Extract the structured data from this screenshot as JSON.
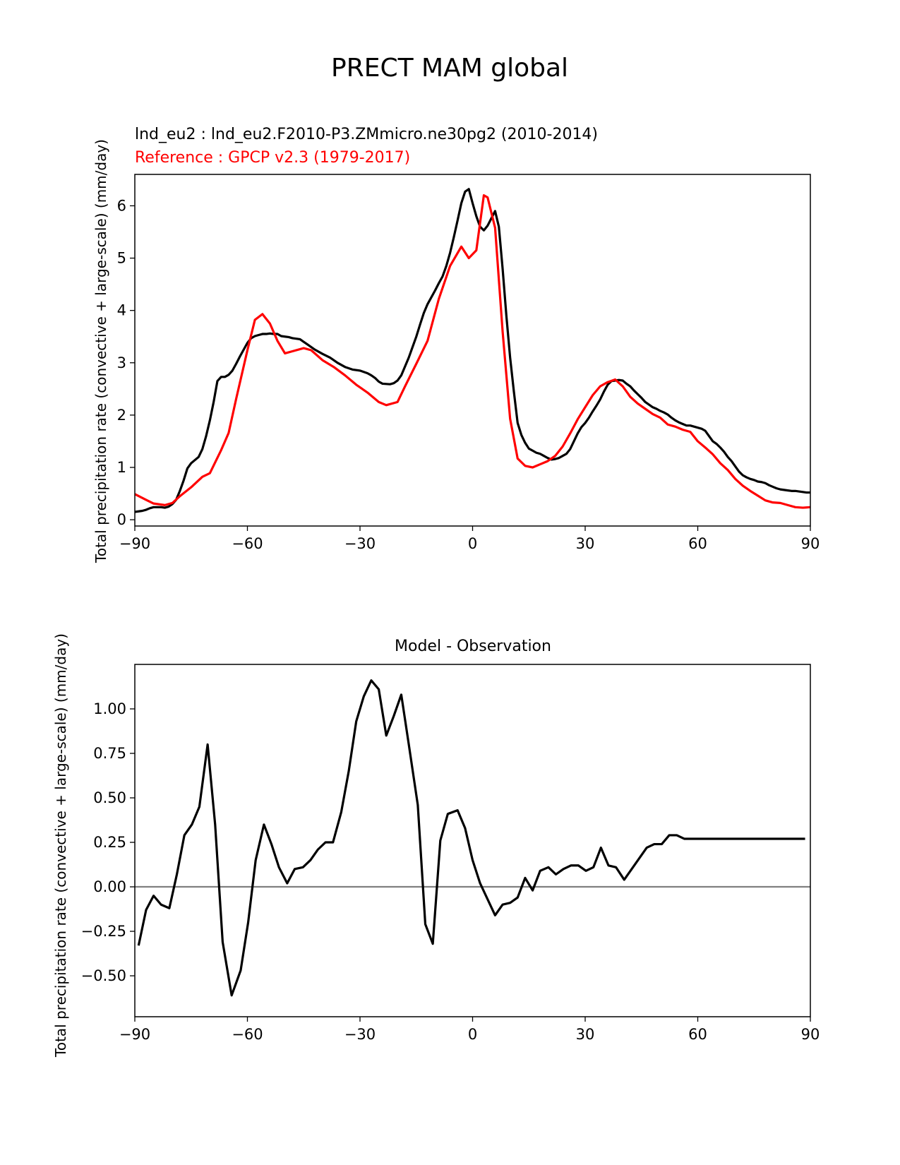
{
  "figure": {
    "suptitle": "PRECT MAM global"
  },
  "chart_data": [
    {
      "type": "line",
      "title_lines": [
        "lnd_eu2 : lnd_eu2.F2010-P3.ZMmicro.ne30pg2 (2010-2014)",
        "Reference : GPCP v2.3 (1979-2017)"
      ],
      "xlabel": "",
      "ylabel": "Total precipitation rate (convective + large-scale) (mm/day)",
      "xlim": [
        -90,
        90
      ],
      "ylim": [
        -0.12,
        6.6
      ],
      "xticks": [
        -90,
        -60,
        -30,
        0,
        30,
        60,
        90
      ],
      "xtick_labels": [
        "−90",
        "−60",
        "−30",
        "0",
        "30",
        "60",
        "90"
      ],
      "yticks": [
        0,
        1,
        2,
        3,
        4,
        5,
        6
      ],
      "ytick_labels": [
        "0",
        "1",
        "2",
        "3",
        "4",
        "5",
        "6"
      ],
      "series": [
        {
          "name": "lnd_eu2",
          "color": "#000000",
          "x": [
            -90,
            -88,
            -87,
            -86,
            -85,
            -83,
            -82,
            -81,
            -80,
            -79,
            -78,
            -77,
            -76,
            -75,
            -73,
            -72,
            -71,
            -70,
            -69,
            -68,
            -67,
            -66,
            -65,
            -64,
            -63,
            -62,
            -61,
            -60,
            -59,
            -58,
            -57,
            -56,
            -55,
            -54,
            -53,
            -52,
            -51,
            -50,
            -49,
            -48,
            -46,
            -45,
            -44,
            -42,
            -40,
            -38,
            -36,
            -34,
            -32,
            -30,
            -28,
            -27,
            -26,
            -25,
            -24,
            -22,
            -21,
            -20,
            -19,
            -18,
            -17,
            -16,
            -15,
            -14,
            -13,
            -12,
            -10,
            -9,
            -8,
            -7,
            -6,
            -5,
            -4,
            -3,
            -2,
            -1,
            0,
            1,
            2,
            3,
            4,
            5,
            6,
            7,
            8,
            9,
            10,
            11,
            12,
            13,
            14,
            15,
            16,
            17,
            18,
            19,
            20,
            21,
            22,
            23,
            24,
            25,
            26,
            27,
            28,
            29,
            30,
            31,
            32,
            33,
            34,
            35,
            36,
            37,
            38,
            39,
            40,
            41,
            42,
            43,
            44,
            45,
            46,
            47,
            48,
            49,
            50,
            51,
            52,
            53,
            54,
            55,
            56,
            57,
            58,
            59,
            60,
            61,
            62,
            63,
            64,
            65,
            66,
            67,
            68,
            69,
            70,
            71,
            72,
            73,
            74,
            75,
            76,
            77,
            78,
            79,
            80,
            81,
            82,
            83,
            84,
            85,
            86,
            87,
            88,
            89,
            90
          ],
          "values": [
            0.15,
            0.17,
            0.19,
            0.22,
            0.24,
            0.24,
            0.23,
            0.25,
            0.3,
            0.38,
            0.55,
            0.75,
            0.98,
            1.08,
            1.2,
            1.35,
            1.6,
            1.9,
            2.25,
            2.65,
            2.73,
            2.73,
            2.77,
            2.85,
            2.98,
            3.12,
            3.25,
            3.38,
            3.47,
            3.51,
            3.53,
            3.55,
            3.55,
            3.56,
            3.55,
            3.55,
            3.51,
            3.5,
            3.49,
            3.47,
            3.45,
            3.4,
            3.35,
            3.25,
            3.17,
            3.1,
            3.0,
            2.92,
            2.87,
            2.85,
            2.8,
            2.76,
            2.71,
            2.64,
            2.6,
            2.59,
            2.61,
            2.66,
            2.76,
            2.93,
            3.1,
            3.3,
            3.5,
            3.73,
            3.95,
            4.12,
            4.38,
            4.52,
            4.65,
            4.85,
            5.1,
            5.4,
            5.72,
            6.05,
            6.27,
            6.32,
            6.05,
            5.8,
            5.6,
            5.53,
            5.62,
            5.76,
            5.9,
            5.6,
            4.8,
            3.9,
            3.1,
            2.45,
            1.85,
            1.62,
            1.47,
            1.36,
            1.32,
            1.28,
            1.26,
            1.22,
            1.18,
            1.15,
            1.16,
            1.18,
            1.22,
            1.26,
            1.35,
            1.5,
            1.65,
            1.77,
            1.85,
            1.95,
            2.07,
            2.18,
            2.3,
            2.45,
            2.58,
            2.65,
            2.66,
            2.67,
            2.66,
            2.6,
            2.55,
            2.47,
            2.4,
            2.33,
            2.25,
            2.2,
            2.15,
            2.12,
            2.08,
            2.05,
            2.01,
            1.95,
            1.9,
            1.86,
            1.83,
            1.8,
            1.8,
            1.78,
            1.76,
            1.74,
            1.7,
            1.6,
            1.5,
            1.45,
            1.38,
            1.3,
            1.2,
            1.12,
            1.02,
            0.92,
            0.85,
            0.81,
            0.78,
            0.76,
            0.73,
            0.72,
            0.7,
            0.66,
            0.63,
            0.6,
            0.58,
            0.57,
            0.56,
            0.55,
            0.55,
            0.54,
            0.53,
            0.52,
            0.52
          ]
        },
        {
          "name": "GPCP v2.3",
          "color": "#ff0000",
          "x": [
            -90,
            -87,
            -85,
            -82,
            -80,
            -78,
            -75,
            -72,
            -70,
            -67,
            -65,
            -63,
            -60,
            -58,
            -56,
            -54,
            -52,
            -50,
            -48,
            -45,
            -43,
            -40,
            -37,
            -34,
            -31,
            -28,
            -25,
            -23,
            -20,
            -18,
            -15,
            -12,
            -9,
            -6,
            -3,
            -1,
            1,
            3,
            4,
            6,
            8,
            10,
            12,
            14,
            16,
            18,
            20,
            22,
            24,
            26,
            28,
            30,
            32,
            34,
            36,
            38,
            40,
            42,
            44,
            46,
            48,
            50,
            52,
            54,
            56,
            58,
            60,
            62,
            64,
            66,
            68,
            70,
            72,
            74,
            76,
            78,
            80,
            82,
            84,
            86,
            88,
            90
          ],
          "values": [
            0.49,
            0.38,
            0.31,
            0.28,
            0.32,
            0.45,
            0.62,
            0.82,
            0.89,
            1.33,
            1.66,
            2.31,
            3.24,
            3.82,
            3.93,
            3.75,
            3.42,
            3.18,
            3.22,
            3.28,
            3.24,
            3.05,
            2.92,
            2.76,
            2.58,
            2.43,
            2.25,
            2.19,
            2.25,
            2.55,
            2.98,
            3.42,
            4.22,
            4.85,
            5.22,
            5.0,
            5.15,
            6.2,
            6.16,
            5.58,
            3.6,
            1.93,
            1.17,
            1.03,
            1.0,
            1.06,
            1.12,
            1.22,
            1.4,
            1.65,
            1.92,
            2.15,
            2.38,
            2.55,
            2.63,
            2.68,
            2.55,
            2.35,
            2.22,
            2.12,
            2.02,
            1.95,
            1.82,
            1.78,
            1.72,
            1.68,
            1.5,
            1.38,
            1.25,
            1.08,
            0.95,
            0.78,
            0.65,
            0.55,
            0.46,
            0.37,
            0.33,
            0.32,
            0.28,
            0.24,
            0.23,
            0.24
          ]
        }
      ]
    },
    {
      "type": "line",
      "title": "Model - Observation",
      "xlabel": "",
      "ylabel": "Total precipitation rate (convective + large-scale) (mm/day)",
      "xlim": [
        -90,
        90
      ],
      "ylim": [
        -0.73,
        1.25
      ],
      "xticks": [
        -90,
        -60,
        -30,
        0,
        30,
        60,
        90
      ],
      "xtick_labels": [
        "−90",
        "−60",
        "−30",
        "0",
        "30",
        "60",
        "90"
      ],
      "yticks": [
        -0.5,
        -0.25,
        0.0,
        0.25,
        0.5,
        0.75,
        1.0
      ],
      "ytick_labels": [
        "−0.50",
        "−0.25",
        "0.00",
        "0.25",
        "0.50",
        "0.75",
        "1.00"
      ],
      "zero_line": {
        "y": 0,
        "color": "#808080"
      },
      "series": [
        {
          "name": "Model - Observation",
          "color": "#000000",
          "x": [
            -89,
            -87,
            -85,
            -83,
            -80.8,
            -78.8,
            -76.8,
            -74.8,
            -72.8,
            -70.6,
            -68.6,
            -66.6,
            -64.2,
            -61.8,
            -59.8,
            -57.8,
            -55.6,
            -53.6,
            -51.6,
            -49.4,
            -47.4,
            -45.2,
            -43.2,
            -41.2,
            -39.2,
            -37.2,
            -35,
            -33,
            -31,
            -29,
            -27,
            -25,
            -23,
            -21,
            -19,
            -17,
            -14.6,
            -12.6,
            -10.6,
            -8.6,
            -6.6,
            -4,
            -2,
            0,
            2,
            4,
            6,
            8,
            10,
            12,
            14,
            16,
            18,
            20.2,
            22.2,
            24.2,
            26.2,
            28.2,
            30.2,
            32.2,
            34.2,
            36.2,
            38.2,
            40.4,
            42.4,
            44.4,
            46.4,
            48.4,
            50.4,
            52.4,
            54.4,
            56.4,
            58.4,
            60.4,
            62.4,
            64.4,
            66.4,
            68.4,
            70.4,
            72.4,
            74.4,
            76.4,
            78.4,
            80.4,
            82.4,
            84.4,
            86.4,
            88.6
          ],
          "values": [
            -0.33,
            -0.13,
            -0.05,
            -0.1,
            -0.12,
            0.07,
            0.29,
            0.35,
            0.45,
            0.8,
            0.35,
            -0.31,
            -0.61,
            -0.47,
            -0.2,
            0.15,
            0.35,
            0.24,
            0.11,
            0.02,
            0.1,
            0.11,
            0.15,
            0.21,
            0.25,
            0.25,
            0.42,
            0.65,
            0.93,
            1.07,
            1.16,
            1.11,
            0.85,
            0.96,
            1.08,
            0.8,
            0.46,
            -0.21,
            -0.32,
            0.26,
            0.41,
            0.43,
            0.33,
            0.15,
            0.02,
            -0.07,
            -0.16,
            -0.1,
            -0.09,
            -0.06,
            0.05,
            -0.02,
            0.09,
            0.11,
            0.07,
            0.1,
            0.12,
            0.12,
            0.09,
            0.11,
            0.22,
            0.12,
            0.11,
            0.04,
            0.1,
            0.16,
            0.22,
            0.24,
            0.24,
            0.29,
            0.29,
            0.27,
            0.27,
            0.27,
            0.27,
            0.27,
            0.27,
            0.27,
            0.27,
            0.27,
            0.27,
            0.27,
            0.27,
            0.27,
            0.27,
            0.27,
            0.27,
            0.27
          ]
        }
      ]
    }
  ]
}
